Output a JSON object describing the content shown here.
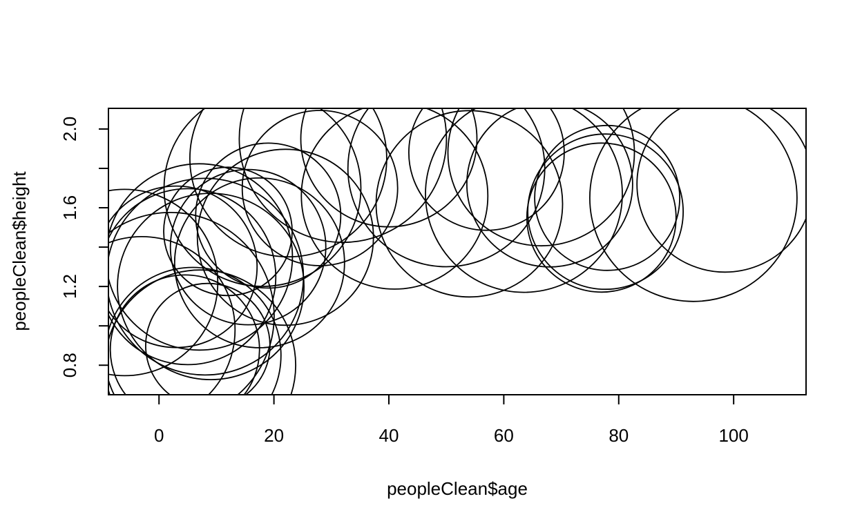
{
  "chart_data": {
    "type": "scatter",
    "title": "",
    "xlabel": "peopleClean$age",
    "ylabel": "peopleClean$height",
    "xlim": [
      -8.8,
      112.6
    ],
    "ylim": [
      0.65,
      2.105
    ],
    "xticks": [
      0,
      20,
      40,
      60,
      80,
      100
    ],
    "yticks": [
      0.8,
      1.2,
      1.6,
      2.0
    ],
    "xtick_labels": [
      "0",
      "20",
      "40",
      "60",
      "80",
      "100"
    ],
    "ytick_labels": [
      "0.8",
      "1.2",
      "1.6",
      "2.0"
    ],
    "grid": false,
    "marker": "open circle (bubble, radius in inches)",
    "points": [
      {
        "x": 4.5,
        "y": 0.88
      },
      {
        "x": 5.9,
        "y": 0.85
      },
      {
        "x": 7.2,
        "y": 0.8
      },
      {
        "x": 8.5,
        "y": 0.9
      },
      {
        "x": 2.0,
        "y": 1.05
      },
      {
        "x": 5.0,
        "y": 1.25
      },
      {
        "x": 7.0,
        "y": 1.35
      },
      {
        "x": 8.0,
        "y": 1.25
      },
      {
        "x": 9.0,
        "y": 1.2
      },
      {
        "x": 3.0,
        "y": 1.3
      },
      {
        "x": -6.0,
        "y": 1.22
      },
      {
        "x": -3.0,
        "y": 0.98
      },
      {
        "x": 12.0,
        "y": 1.48
      },
      {
        "x": 15.5,
        "y": 1.4
      },
      {
        "x": 17.5,
        "y": 1.32
      },
      {
        "x": 19.0,
        "y": 1.56
      },
      {
        "x": 22.0,
        "y": 1.45
      },
      {
        "x": 18.0,
        "y": 1.7
      },
      {
        "x": 22.5,
        "y": 1.85
      },
      {
        "x": 28.0,
        "y": 1.7
      },
      {
        "x": 32.0,
        "y": 1.95
      },
      {
        "x": 40.0,
        "y": 1.95
      },
      {
        "x": 41.0,
        "y": 1.66
      },
      {
        "x": 50.0,
        "y": 1.8
      },
      {
        "x": 54.0,
        "y": 1.62
      },
      {
        "x": 57.0,
        "y": 1.88
      },
      {
        "x": 63.5,
        "y": 1.67
      },
      {
        "x": 66.5,
        "y": 1.88
      },
      {
        "x": 68.0,
        "y": 1.72
      },
      {
        "x": 77.0,
        "y": 1.55
      },
      {
        "x": 77.7,
        "y": 1.58
      },
      {
        "x": 78.0,
        "y": 1.65
      },
      {
        "x": 93.0,
        "y": 1.65
      },
      {
        "x": 98.5,
        "y": 1.72
      }
    ],
    "radii": [
      0.72,
      0.85,
      0.92,
      0.6,
      1.0,
      0.85,
      0.9,
      0.95,
      0.9,
      0.78,
      0.9,
      0.9,
      0.62,
      0.75,
      0.82,
      0.7,
      0.85,
      0.95,
      0.95,
      0.75,
      1.0,
      0.85,
      0.9,
      0.95,
      0.9,
      0.75,
      0.95,
      0.9,
      0.8,
      0.72,
      0.75,
      0.7,
      1.0,
      0.85
    ]
  }
}
